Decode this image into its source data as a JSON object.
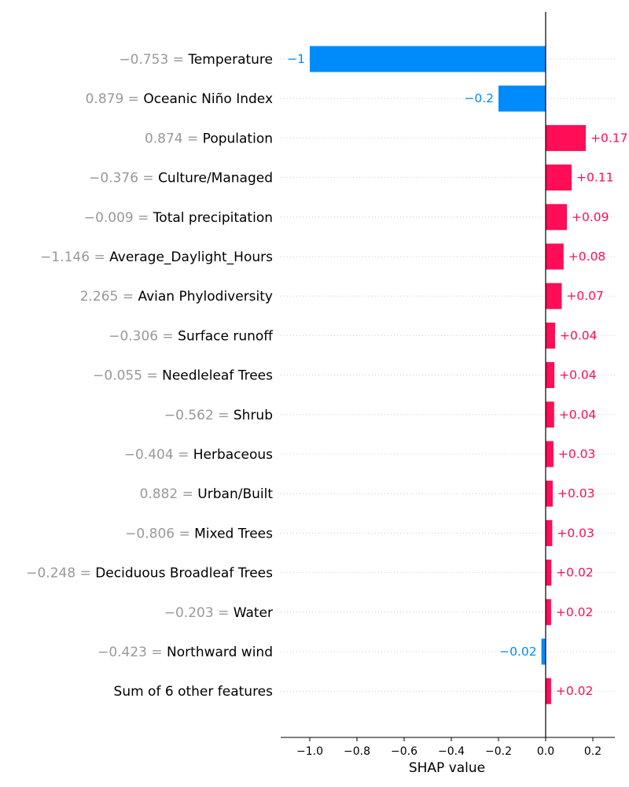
{
  "chart_data": {
    "type": "bar",
    "chart_kind": "shap-bar",
    "orientation": "horizontal",
    "xlabel": "SHAP value",
    "xlim": [
      -1.12,
      0.29
    ],
    "xticks": [
      -1.0,
      -0.8,
      -0.6,
      -0.4,
      -0.2,
      0.0,
      0.2
    ],
    "xtick_labels": [
      "−1.0",
      "−0.8",
      "−0.6",
      "−0.4",
      "−0.2",
      "0.0",
      "0.2"
    ],
    "grid": "dotted horizontal row lines",
    "colors": {
      "positive": "#ff0d57",
      "negative": "#008bfb",
      "feature_value": "#999999",
      "label": "#000000",
      "grid": "#cccccc",
      "axis": "#000000"
    },
    "rows": [
      {
        "feature_value": "−0.753 = ",
        "feature": "Temperature",
        "value": -1.0,
        "label": "−1"
      },
      {
        "feature_value": "0.879 = ",
        "feature": "Oceanic Niño Index",
        "value": -0.2,
        "label": "−0.2"
      },
      {
        "feature_value": "0.874 = ",
        "feature": "Population",
        "value": 0.17,
        "label": "+0.17"
      },
      {
        "feature_value": "−0.376 = ",
        "feature": "Culture/Managed",
        "value": 0.11,
        "label": "+0.11"
      },
      {
        "feature_value": "−0.009 = ",
        "feature": "Total precipitation",
        "value": 0.09,
        "label": "+0.09"
      },
      {
        "feature_value": "−1.146 = ",
        "feature": "Average_Daylight_Hours",
        "value": 0.076,
        "label": "+0.08"
      },
      {
        "feature_value": "2.265 = ",
        "feature": "Avian Phylodiversity",
        "value": 0.068,
        "label": "+0.07"
      },
      {
        "feature_value": "−0.306 = ",
        "feature": "Surface runoff",
        "value": 0.04,
        "label": "+0.04"
      },
      {
        "feature_value": "−0.055 = ",
        "feature": "Needleleaf Trees",
        "value": 0.037,
        "label": "+0.04"
      },
      {
        "feature_value": "−0.562 = ",
        "feature": "Shrub",
        "value": 0.036,
        "label": "+0.04"
      },
      {
        "feature_value": "−0.404 = ",
        "feature": "Herbaceous",
        "value": 0.033,
        "label": "+0.03"
      },
      {
        "feature_value": "0.882 = ",
        "feature": "Urban/Built",
        "value": 0.03,
        "label": "+0.03"
      },
      {
        "feature_value": "−0.806 = ",
        "feature": "Mixed Trees",
        "value": 0.028,
        "label": "+0.03"
      },
      {
        "feature_value": "−0.248 = ",
        "feature": "Deciduous Broadleaf Trees",
        "value": 0.024,
        "label": "+0.02"
      },
      {
        "feature_value": "−0.203 = ",
        "feature": "Water",
        "value": 0.023,
        "label": "+0.02"
      },
      {
        "feature_value": "−0.423 = ",
        "feature": "Northward wind",
        "value": -0.018,
        "label": "−0.02"
      },
      {
        "feature_value": "",
        "feature": "Sum of 6 other features",
        "value": 0.023,
        "label": "+0.02"
      }
    ]
  }
}
